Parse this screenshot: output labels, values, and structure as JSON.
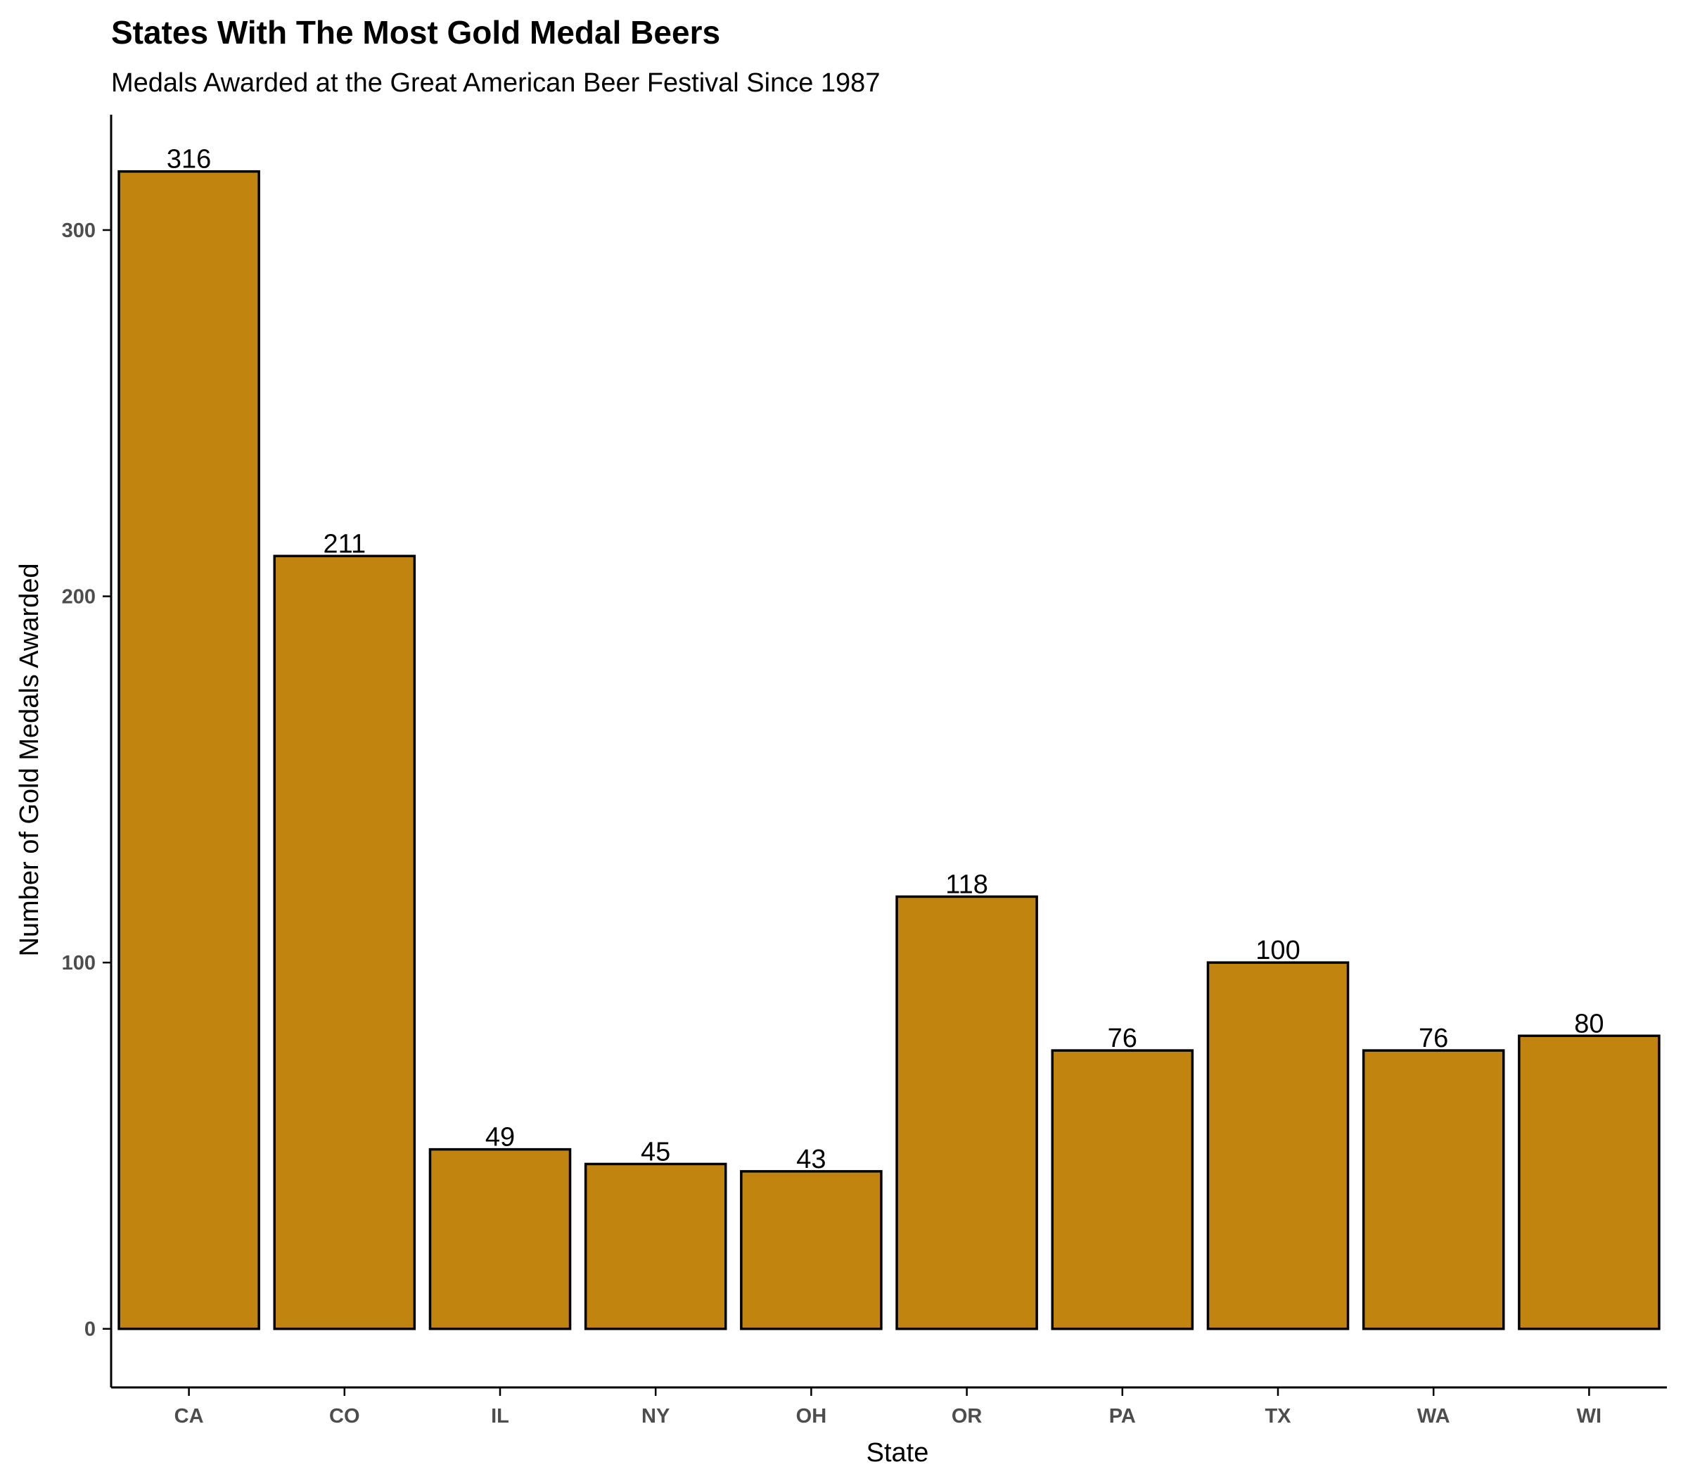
{
  "chart_data": {
    "type": "bar",
    "title": "States With The Most Gold Medal Beers",
    "subtitle": "Medals Awarded at the Great American Beer Festival Since 1987",
    "xlabel": "State",
    "ylabel": "Number of Gold Medals Awarded",
    "categories": [
      "CA",
      "CO",
      "IL",
      "NY",
      "OH",
      "OR",
      "PA",
      "TX",
      "WA",
      "WI"
    ],
    "values": [
      316,
      211,
      49,
      45,
      43,
      118,
      76,
      100,
      76,
      80
    ],
    "data_labels": [
      "316",
      "211",
      "49",
      "45",
      "43",
      "118",
      "76",
      "100",
      "76",
      "80"
    ],
    "yticks": [
      0,
      100,
      200,
      300
    ],
    "ytick_labels": [
      "0",
      "100",
      "200",
      "300"
    ],
    "ylim": [
      -16,
      331.5
    ],
    "grid": false,
    "legend": "none",
    "colors": {
      "bar_fill": "#C1840F",
      "bar_stroke": "#000000",
      "axis": "#000000",
      "tick_text": "#4d4d4d"
    }
  }
}
